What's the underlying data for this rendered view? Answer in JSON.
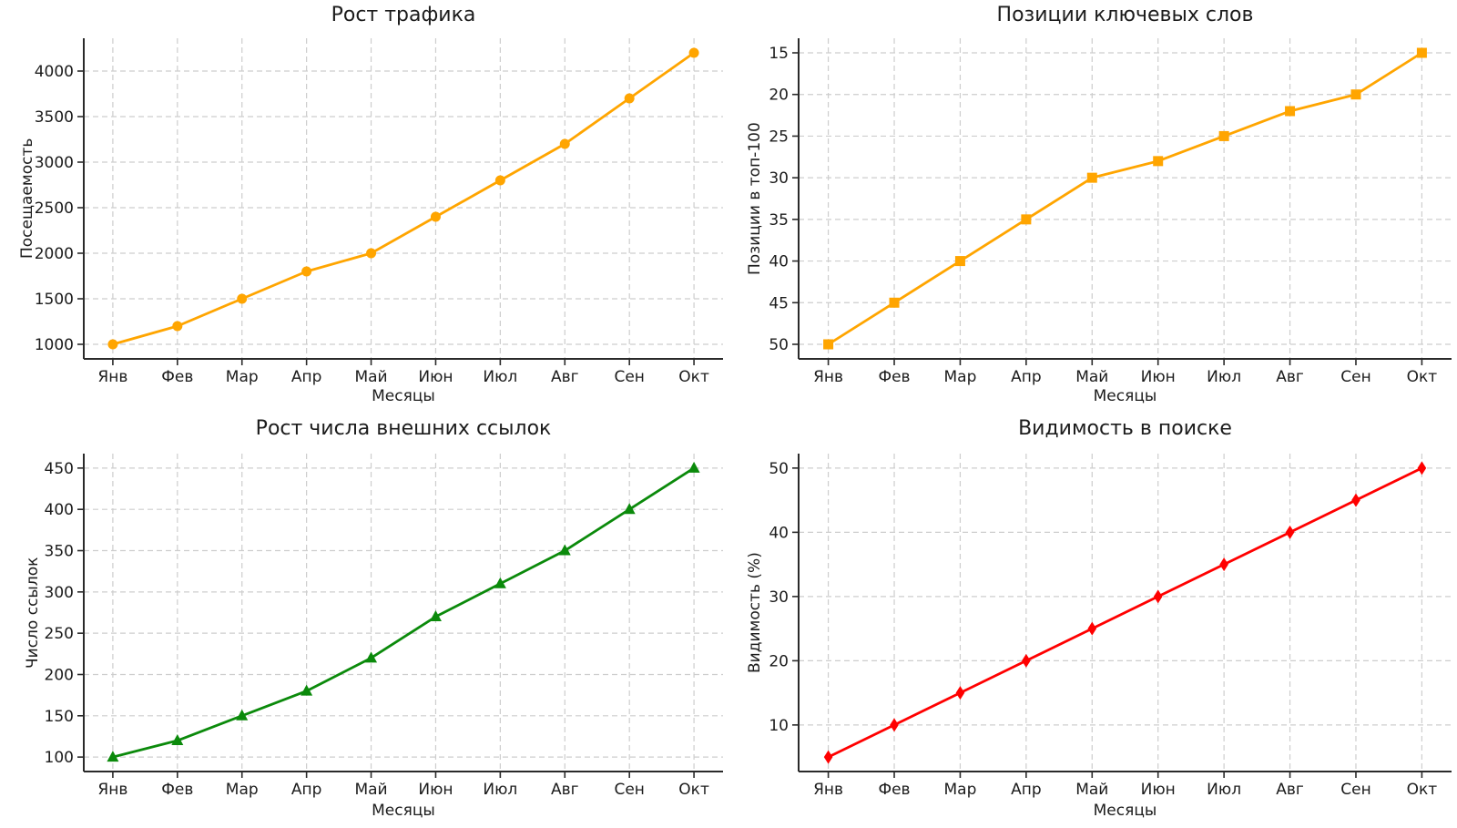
{
  "chart_data": [
    {
      "type": "line",
      "title": "Рост трафика",
      "xlabel": "Месяцы",
      "ylabel": "Посещаемость",
      "categories": [
        "Янв",
        "Фев",
        "Мар",
        "Апр",
        "Май",
        "Июн",
        "Июл",
        "Авг",
        "Сен",
        "Окт"
      ],
      "values": [
        1000,
        1200,
        1500,
        1800,
        2000,
        2400,
        2800,
        3200,
        3700,
        4200
      ],
      "yticks": [
        1000,
        1500,
        2000,
        2500,
        3000,
        3500,
        4000
      ],
      "ylim": [
        840,
        4360
      ],
      "y_inverted": false,
      "color": "#FFA500",
      "marker": "circle",
      "grid": true,
      "legend": "none"
    },
    {
      "type": "line",
      "title": "Позиции ключевых слов",
      "xlabel": "Месяцы",
      "ylabel": "Позиции в топ-100",
      "categories": [
        "Янв",
        "Фев",
        "Мар",
        "Апр",
        "Май",
        "Июн",
        "Июл",
        "Авг",
        "Сен",
        "Окт"
      ],
      "values": [
        50,
        45,
        40,
        35,
        30,
        28,
        25,
        22,
        20,
        15
      ],
      "yticks": [
        15,
        20,
        25,
        30,
        35,
        40,
        45,
        50
      ],
      "ylim": [
        13.25,
        51.75
      ],
      "y_inverted": true,
      "color": "#FFA500",
      "marker": "square",
      "grid": true,
      "legend": "none"
    },
    {
      "type": "line",
      "title": "Рост числа внешних ссылок",
      "xlabel": "Месяцы",
      "ylabel": "Число ссылок",
      "categories": [
        "Янв",
        "Фев",
        "Мар",
        "Апр",
        "Май",
        "Июн",
        "Июл",
        "Авг",
        "Сен",
        "Окт"
      ],
      "values": [
        100,
        120,
        150,
        180,
        220,
        270,
        310,
        350,
        400,
        450
      ],
      "yticks": [
        100,
        150,
        200,
        250,
        300,
        350,
        400,
        450
      ],
      "ylim": [
        82.5,
        467.5
      ],
      "y_inverted": false,
      "color": "#0B8A0B",
      "marker": "triangle-up",
      "grid": true,
      "legend": "none"
    },
    {
      "type": "line",
      "title": "Видимость в поиске",
      "xlabel": "Месяцы",
      "ylabel": "Видимость (%)",
      "categories": [
        "Янв",
        "Фев",
        "Мар",
        "Апр",
        "Май",
        "Июн",
        "Июл",
        "Авг",
        "Сен",
        "Окт"
      ],
      "values": [
        5,
        10,
        15,
        20,
        25,
        30,
        35,
        40,
        45,
        50
      ],
      "yticks": [
        10,
        20,
        30,
        40,
        50
      ],
      "ylim": [
        2.75,
        52.25
      ],
      "y_inverted": false,
      "color": "#FF0000",
      "marker": "diamond-thin",
      "grid": true,
      "legend": "none"
    }
  ],
  "style": {
    "grid_color": "#cdcdcd",
    "spine_color": "#2a2a2a",
    "text_color": "#1c1c1c",
    "background": "#ffffff"
  }
}
